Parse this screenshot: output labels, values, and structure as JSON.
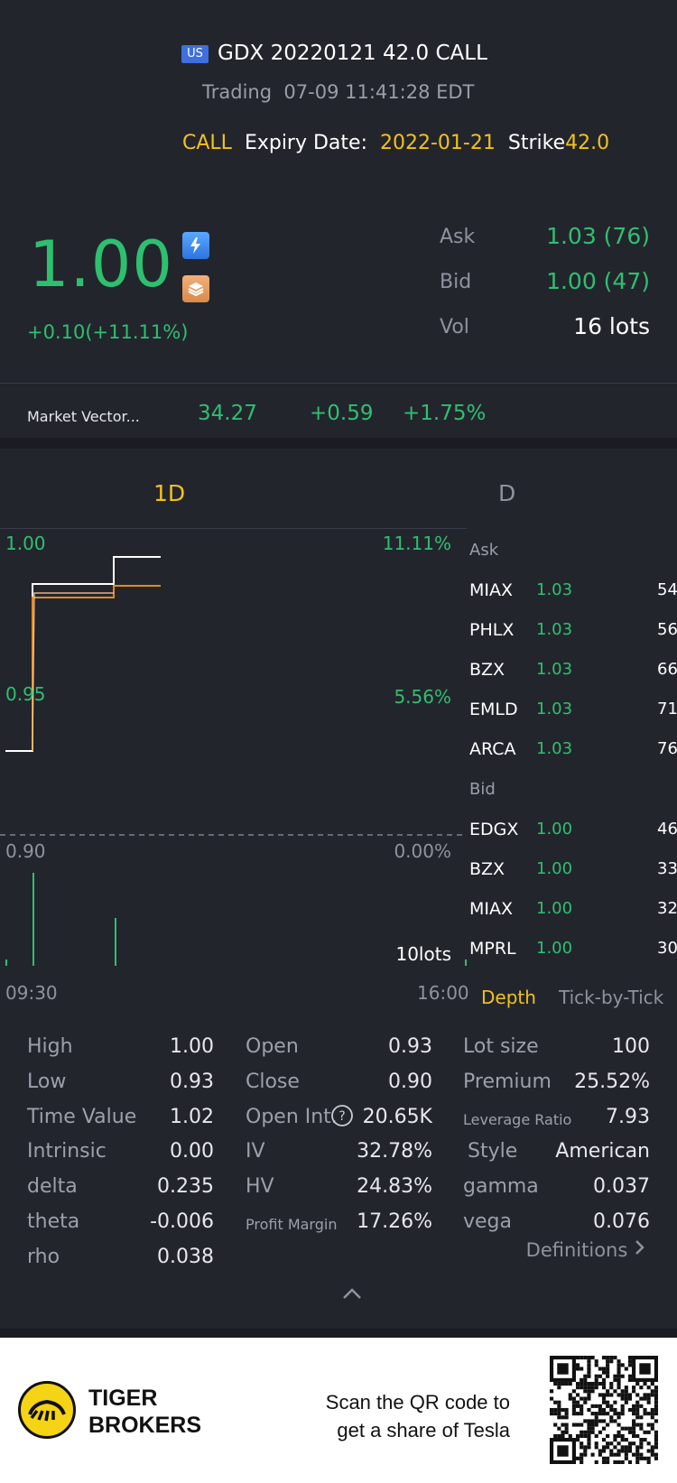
{
  "header": {
    "market_badge": "US",
    "title": "GDX 20220121 42.0 CALL",
    "status": "Trading",
    "timestamp": "07-09 11:41:28 EDT",
    "type": "CALL",
    "expiry_label": "Expiry Date:",
    "expiry_value": "2022-01-21",
    "strike_label": "Strike",
    "strike_value": "42.0"
  },
  "quote": {
    "price": "1.00",
    "change": "+0.10(+11.11%)",
    "ask_label": "Ask",
    "ask_value": "1.03 (76)",
    "bid_label": "Bid",
    "bid_value": "1.00 (47)",
    "vol_label": "Vol",
    "vol_value": "16 lots"
  },
  "underlying": {
    "name": "Market Vector...",
    "price": "34.27",
    "change": "+0.59",
    "change_pct": "+1.75%"
  },
  "tabs": {
    "intraday": "1D",
    "daily": "D"
  },
  "chart": {
    "y_top": "1.00",
    "y_mid": "0.95",
    "y_bot": "0.90",
    "pct_top": "11.11%",
    "pct_mid": "5.56%",
    "pct_bot": "0.00%",
    "volume_label": "10lots",
    "time_start": "09:30",
    "time_end": "16:00"
  },
  "depth": {
    "ask_label": "Ask",
    "bid_label": "Bid",
    "asks": [
      {
        "exchange": "MIAX",
        "price": "1.03",
        "size": "54"
      },
      {
        "exchange": "PHLX",
        "price": "1.03",
        "size": "56"
      },
      {
        "exchange": "BZX",
        "price": "1.03",
        "size": "66"
      },
      {
        "exchange": "EMLD",
        "price": "1.03",
        "size": "71"
      },
      {
        "exchange": "ARCA",
        "price": "1.03",
        "size": "76"
      }
    ],
    "bids": [
      {
        "exchange": "EDGX",
        "price": "1.00",
        "size": "46"
      },
      {
        "exchange": "BZX",
        "price": "1.00",
        "size": "33"
      },
      {
        "exchange": "MIAX",
        "price": "1.00",
        "size": "32"
      },
      {
        "exchange": "MPRL",
        "price": "1.00",
        "size": "30"
      }
    ],
    "tab_depth": "Depth",
    "tab_tick": "Tick-by-Tick"
  },
  "stats": {
    "col1": [
      {
        "label": "High",
        "value": "1.00"
      },
      {
        "label": "Low",
        "value": "0.93"
      },
      {
        "label": "Time Value",
        "value": "1.02"
      },
      {
        "label": "Intrinsic",
        "value": "0.00"
      },
      {
        "label": "delta",
        "value": "0.235"
      },
      {
        "label": "theta",
        "value": "-0.006"
      },
      {
        "label": "rho",
        "value": "0.038"
      }
    ],
    "col2": [
      {
        "label": "Open",
        "value": "0.93"
      },
      {
        "label": "Close",
        "value": "0.90"
      },
      {
        "label": "Open Int.",
        "value": "20.65K"
      },
      {
        "label": "IV",
        "value": "32.78%"
      },
      {
        "label": "HV",
        "value": "24.83%"
      },
      {
        "label": "Profit Margin",
        "value": "17.26%"
      }
    ],
    "col3": [
      {
        "label": "Lot size",
        "value": "100"
      },
      {
        "label": "Premium",
        "value": "25.52%"
      },
      {
        "label": "Leverage Ratio",
        "value": "7.93"
      },
      {
        "label": "Style",
        "value": "American"
      },
      {
        "label": "gamma",
        "value": "0.037"
      },
      {
        "label": "vega",
        "value": "0.076"
      }
    ],
    "definitions": "Definitions"
  },
  "footer": {
    "brand_line1": "TIGER",
    "brand_line2": "BROKERS",
    "scan_line1": "Scan the QR code to",
    "scan_line2": "get a share of Tesla"
  },
  "colors": {
    "background": "#23252d",
    "up_green": "#2ec06f",
    "accent_yellow": "#f2c21b",
    "avg_line_orange": "#e8891e"
  }
}
